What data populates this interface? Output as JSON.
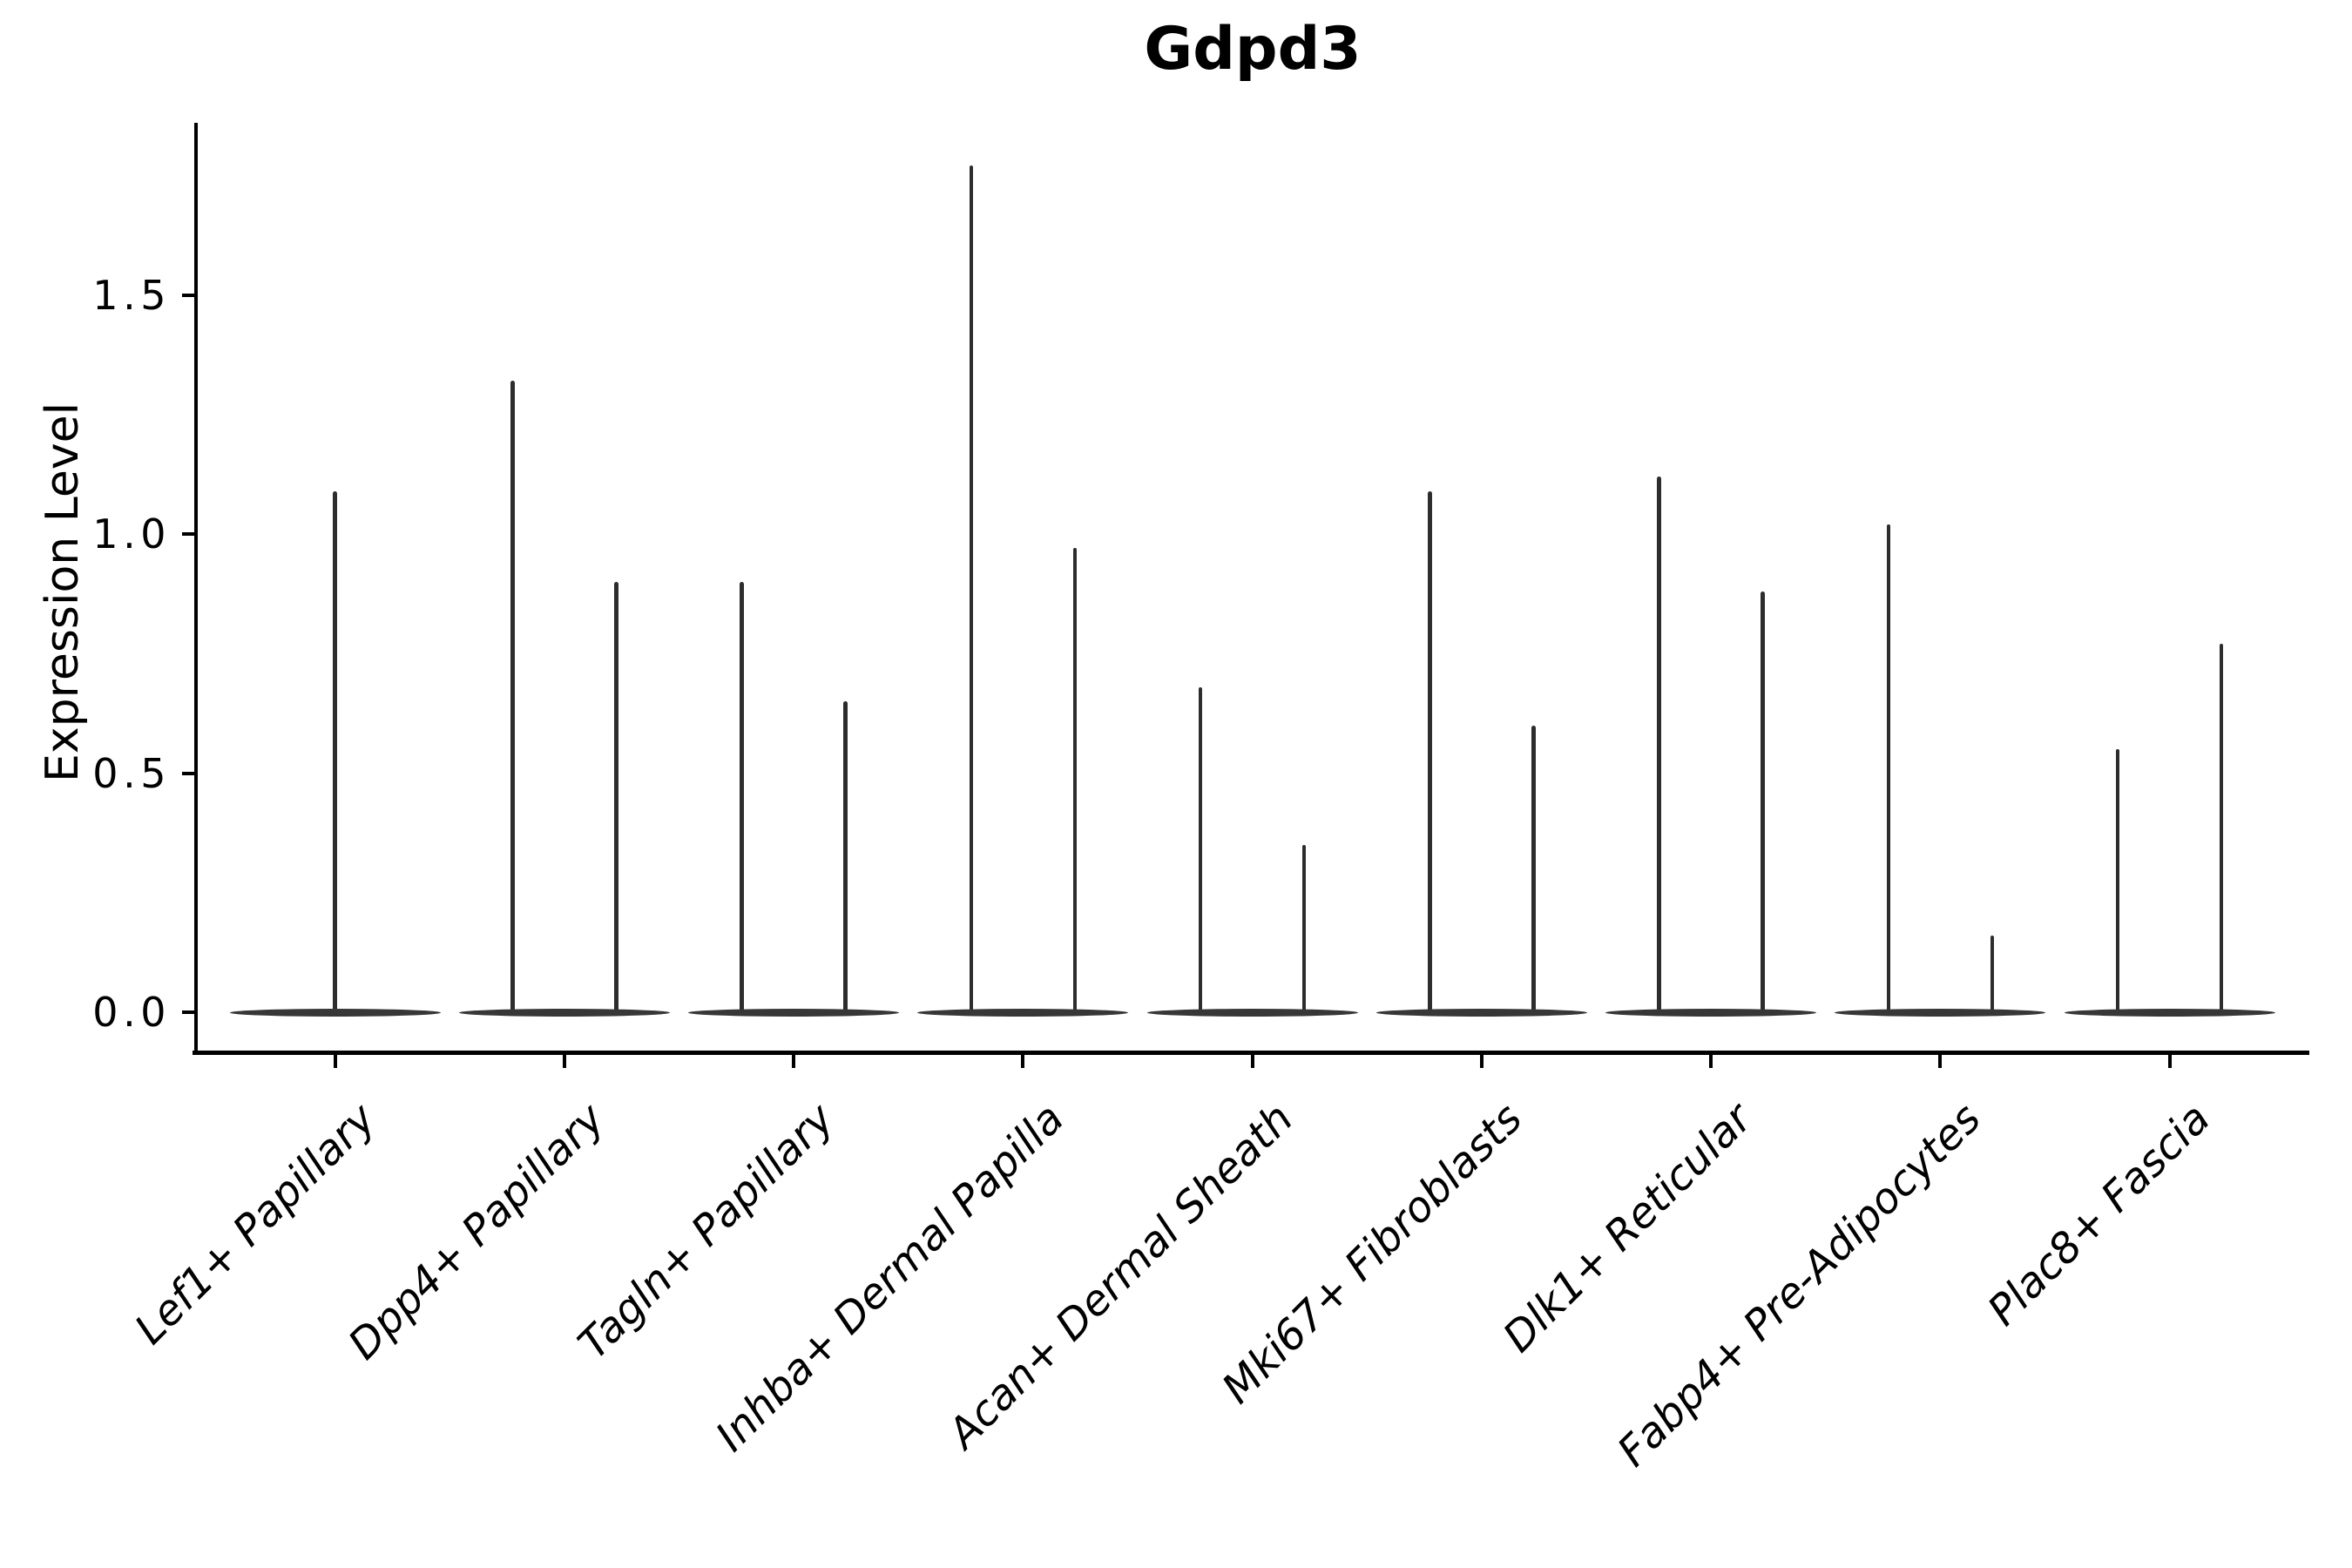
{
  "title": "Gdpd3",
  "y_axis": {
    "label": "Expression Level",
    "ticks": [
      "0.0",
      "0.5",
      "1.0",
      "1.5"
    ]
  },
  "colors": {
    "violin": "#2d2d2d",
    "violin_base": "#373737",
    "axis": "#000000",
    "background": "#ffffff"
  },
  "chart_data": {
    "type": "violin",
    "title": "Gdpd3",
    "xlabel": "",
    "ylabel": "Expression Level",
    "ylim": [
      -0.09,
      1.86
    ],
    "yticks": [
      0.0,
      0.5,
      1.0,
      1.5
    ],
    "x_tick_rotation": 45,
    "legend": "none",
    "grid": false,
    "baseline_value": 0.0,
    "categories": [
      "Lef1+ Papillary",
      "Dpp4+ Papillary",
      "Tagln+ Papillary",
      "Inhba+ Dermal Papilla",
      "Acan+ Dermal Sheath",
      "Mki67+ Fibroblasts",
      "Dlk1+ Reticular",
      "Fabp4+ Pre-Adipocytes",
      "Plac8+ Fascia"
    ],
    "series": [
      {
        "category": "Lef1+ Papillary",
        "violins": [
          {
            "position": "center",
            "max_expression": 1.09
          }
        ]
      },
      {
        "category": "Dpp4+ Papillary",
        "violins": [
          {
            "position": "left",
            "max_expression": 1.32
          },
          {
            "position": "right",
            "max_expression": 0.9
          }
        ]
      },
      {
        "category": "Tagln+ Papillary",
        "violins": [
          {
            "position": "left",
            "max_expression": 0.9
          },
          {
            "position": "right",
            "max_expression": 0.65
          }
        ]
      },
      {
        "category": "Inhba+ Dermal Papilla",
        "violins": [
          {
            "position": "left",
            "max_expression": 1.77
          },
          {
            "position": "right",
            "max_expression": 0.97
          }
        ]
      },
      {
        "category": "Acan+ Dermal Sheath",
        "violins": [
          {
            "position": "left",
            "max_expression": 0.68
          },
          {
            "position": "right",
            "max_expression": 0.35
          }
        ]
      },
      {
        "category": "Mki67+ Fibroblasts",
        "violins": [
          {
            "position": "left",
            "max_expression": 1.09
          },
          {
            "position": "right",
            "max_expression": 0.6
          }
        ]
      },
      {
        "category": "Dlk1+ Reticular",
        "violins": [
          {
            "position": "left",
            "max_expression": 1.12
          },
          {
            "position": "right",
            "max_expression": 0.88
          }
        ]
      },
      {
        "category": "Fabp4+ Pre-Adipocytes",
        "violins": [
          {
            "position": "left",
            "max_expression": 1.02
          },
          {
            "position": "right",
            "max_expression": 0.16
          }
        ]
      },
      {
        "category": "Plac8+ Fascia",
        "violins": [
          {
            "position": "left",
            "max_expression": 0.55
          },
          {
            "position": "right",
            "max_expression": 0.77
          }
        ]
      }
    ]
  }
}
